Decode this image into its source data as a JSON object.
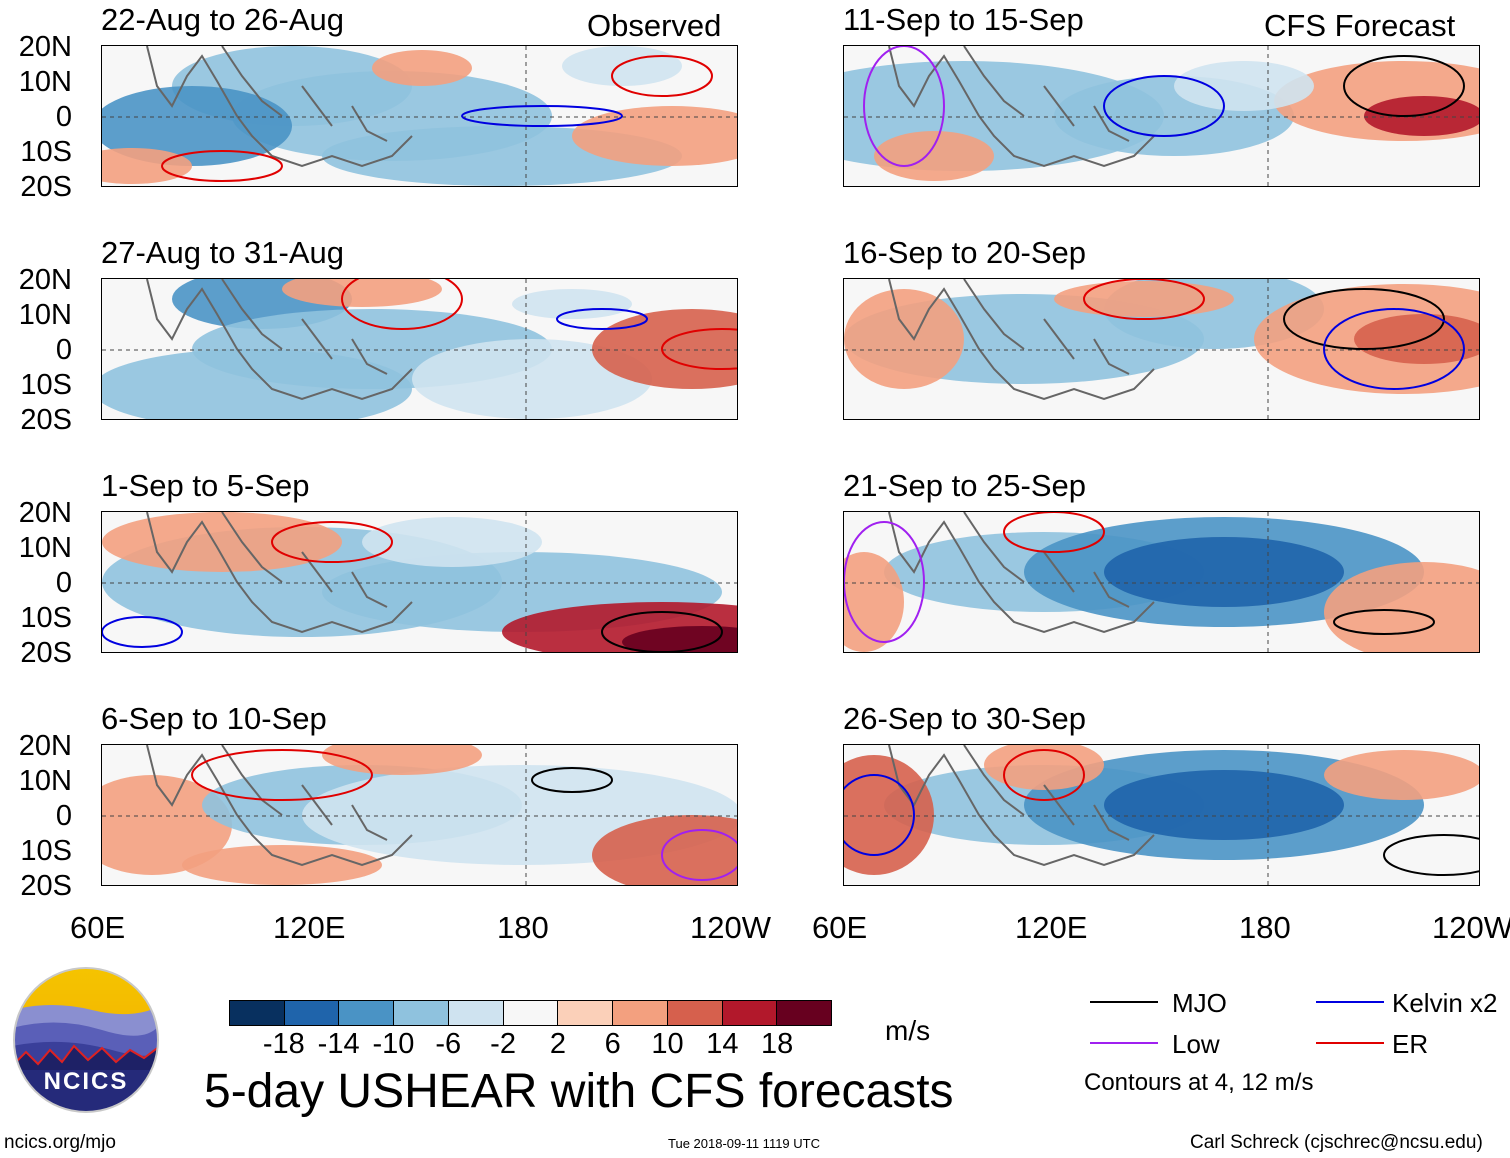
{
  "title": "5-day USHEAR with CFS forecasts",
  "headers": {
    "observed": "Observed",
    "forecast": "CFS Forecast"
  },
  "lat_labels": [
    "20N",
    "10N",
    "0",
    "10S",
    "20S"
  ],
  "lon_labels": [
    "60E",
    "120E",
    "180",
    "120W"
  ],
  "panels": [
    {
      "period": "22-Aug to 26-Aug",
      "group": "Observed"
    },
    {
      "period": "27-Aug to 31-Aug",
      "group": "Observed"
    },
    {
      "period": "1-Sep to 5-Sep",
      "group": "Observed"
    },
    {
      "period": "6-Sep to 10-Sep",
      "group": "Observed"
    },
    {
      "period": "11-Sep to 15-Sep",
      "group": "CFS Forecast"
    },
    {
      "period": "16-Sep to 20-Sep",
      "group": "CFS Forecast"
    },
    {
      "period": "21-Sep to 25-Sep",
      "group": "CFS Forecast"
    },
    {
      "period": "26-Sep to 30-Sep",
      "group": "CFS Forecast"
    }
  ],
  "colorbar": {
    "ticks": [
      "-18",
      "-14",
      "-10",
      "-6",
      "-2",
      "2",
      "6",
      "10",
      "14",
      "18"
    ],
    "units": "m/s",
    "colors": [
      "#08305f",
      "#1f64ab",
      "#4a93c5",
      "#8fc2de",
      "#cfe3f0",
      "#f7f7f7",
      "#fbd0b9",
      "#f3a07f",
      "#d6604d",
      "#b2182b",
      "#67001f"
    ]
  },
  "legend": {
    "items": [
      {
        "label": "MJO",
        "color": "#000000"
      },
      {
        "label": "Kelvin x2",
        "color": "#0000e0"
      },
      {
        "label": "Low",
        "color": "#a020f0"
      },
      {
        "label": "ER",
        "color": "#e00000"
      }
    ],
    "note": "Contours at 4, 12 m/s"
  },
  "logo": {
    "text": "NCICS"
  },
  "footer": {
    "url": "ncics.org/mjo",
    "timestamp": "Tue 2018-09-11 1119 UTC",
    "credit": "Carl Schreck (cjschrec@ncsu.edu)"
  }
}
